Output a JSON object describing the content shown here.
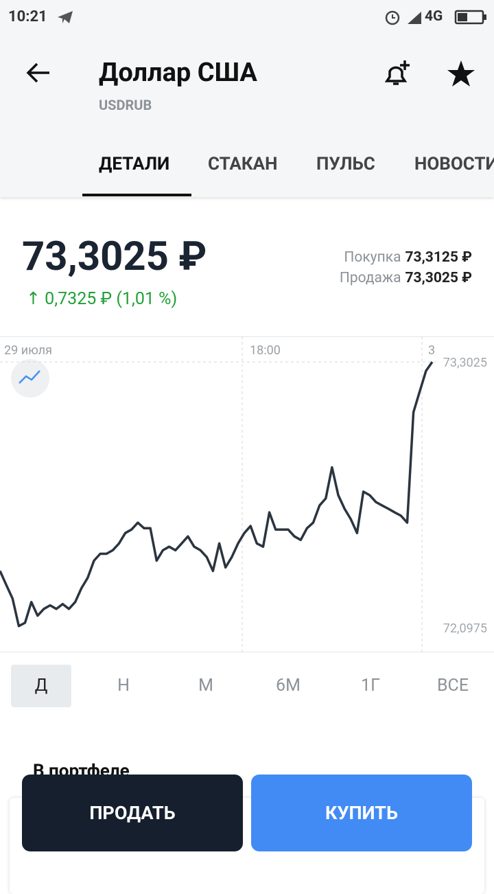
{
  "status_bar": {
    "time": "10:21",
    "network": "4G"
  },
  "header": {
    "title": "Доллар США",
    "subtitle": "USDRUB"
  },
  "tabs": [
    "ДЕТАЛИ",
    "СТАКАН",
    "ПУЛЬС",
    "НОВОСТИ"
  ],
  "price": {
    "value": "73,3025 ₽",
    "change_arrow": "↑",
    "change": "0,7325 ₽ (1,01 %)",
    "buy_label": "Покупка",
    "buy": "73,3125 ₽",
    "sell_label": "Продажа",
    "sell": "73,3025 ₽"
  },
  "chart_data": {
    "type": "line",
    "color": "#2b3540",
    "xtick_labels": [
      "29 июля",
      "18:00",
      "3"
    ],
    "ylim": [
      71.985,
      73.418
    ],
    "yticks": [
      {
        "value": 72.0975,
        "label": "72,0975"
      },
      {
        "value": 73.3025,
        "label": "73,3025"
      }
    ],
    "values": [
      72.354,
      72.291,
      72.229,
      72.104,
      72.119,
      72.213,
      72.151,
      72.182,
      72.198,
      72.182,
      72.204,
      72.182,
      72.213,
      72.276,
      72.323,
      72.401,
      72.432,
      72.432,
      72.448,
      72.479,
      72.526,
      72.542,
      72.573,
      72.548,
      72.548,
      72.401,
      72.448,
      72.464,
      72.448,
      72.479,
      72.511,
      72.464,
      72.448,
      72.417,
      72.354,
      72.479,
      72.37,
      72.417,
      72.479,
      72.526,
      72.558,
      72.479,
      72.464,
      72.62,
      72.542,
      72.542,
      72.542,
      72.511,
      72.495,
      72.548,
      72.573,
      72.651,
      72.683,
      72.824,
      72.698,
      72.636,
      72.589,
      72.526,
      72.714,
      72.698,
      72.667,
      72.651,
      72.636,
      72.62,
      72.605,
      72.573,
      73.074,
      73.168,
      73.262,
      73.3025
    ]
  },
  "periods": [
    "Д",
    "Н",
    "М",
    "6М",
    "1Г",
    "ВСЕ"
  ],
  "portfolio_title": "В портфеле",
  "buttons": {
    "sell": "ПРОДАТЬ",
    "buy": "КУПИТЬ"
  }
}
